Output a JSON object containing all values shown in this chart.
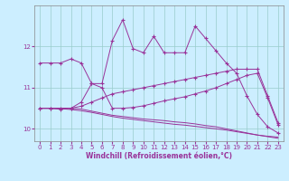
{
  "xlabel": "Windchill (Refroidissement éolien,°C)",
  "background_color": "#cceeff",
  "grid_color": "#99cccc",
  "line_color": "#993399",
  "xlim": [
    -0.5,
    23.5
  ],
  "ylim": [
    9.7,
    13.0
  ],
  "yticks": [
    10,
    11,
    12
  ],
  "xticks": [
    0,
    1,
    2,
    3,
    4,
    5,
    6,
    7,
    8,
    9,
    10,
    11,
    12,
    13,
    14,
    15,
    16,
    17,
    18,
    19,
    20,
    21,
    22,
    23
  ],
  "series": [
    {
      "y": [
        11.6,
        11.6,
        11.6,
        11.7,
        11.6,
        11.1,
        11.1,
        12.15,
        12.65,
        11.95,
        11.85,
        12.25,
        11.85,
        11.85,
        11.85,
        12.5,
        12.2,
        11.9,
        11.6,
        11.35,
        10.8,
        10.35,
        10.05,
        9.9
      ],
      "marker": true
    },
    {
      "y": [
        10.5,
        10.5,
        10.5,
        10.5,
        10.55,
        10.65,
        10.75,
        10.85,
        10.9,
        10.95,
        11.0,
        11.05,
        11.1,
        11.15,
        11.2,
        11.25,
        11.3,
        11.35,
        11.4,
        11.45,
        11.45,
        11.45,
        10.8,
        10.15
      ],
      "marker": true
    },
    {
      "y": [
        10.5,
        10.5,
        10.5,
        10.5,
        10.48,
        10.43,
        10.38,
        10.33,
        10.3,
        10.27,
        10.24,
        10.22,
        10.2,
        10.17,
        10.15,
        10.12,
        10.08,
        10.05,
        10.0,
        9.95,
        9.9,
        9.85,
        9.82,
        9.8
      ],
      "marker": false
    },
    {
      "y": [
        10.5,
        10.5,
        10.48,
        10.5,
        10.65,
        11.1,
        11.0,
        10.5,
        10.5,
        10.52,
        10.56,
        10.62,
        10.68,
        10.73,
        10.78,
        10.85,
        10.92,
        11.0,
        11.1,
        11.2,
        11.3,
        11.35,
        10.75,
        10.1
      ],
      "marker": true
    },
    {
      "y": [
        10.5,
        10.5,
        10.49,
        10.47,
        10.44,
        10.4,
        10.35,
        10.3,
        10.26,
        10.23,
        10.2,
        10.17,
        10.14,
        10.11,
        10.09,
        10.06,
        10.03,
        10.0,
        9.97,
        9.93,
        9.89,
        9.85,
        9.81,
        9.77
      ],
      "marker": false
    }
  ]
}
